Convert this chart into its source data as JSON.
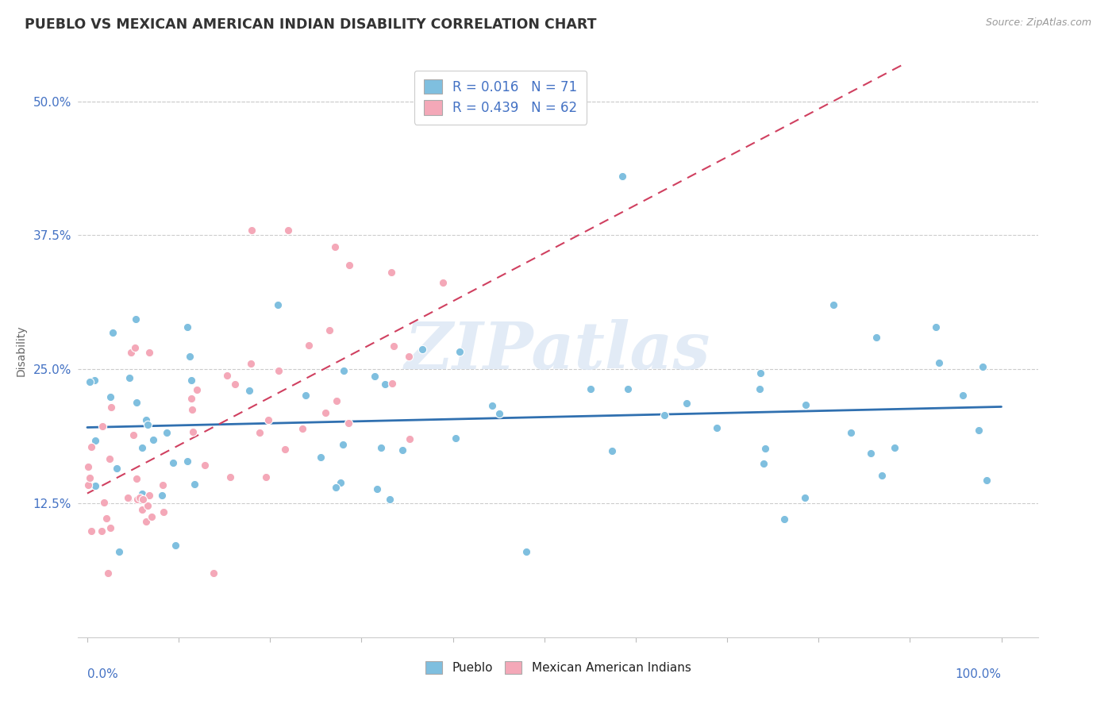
{
  "title": "PUEBLO VS MEXICAN AMERICAN INDIAN DISABILITY CORRELATION CHART",
  "source_text": "Source: ZipAtlas.com",
  "ylabel": "Disability",
  "ytick_vals": [
    0.125,
    0.25,
    0.375,
    0.5
  ],
  "legend_r1": "R = 0.016",
  "legend_n1": "N = 71",
  "legend_r2": "R = 0.439",
  "legend_n2": "N = 62",
  "blue_color": "#7fbfdf",
  "pink_color": "#f4a8b8",
  "trendline_blue": "#3070b0",
  "trendline_pink": "#d04060",
  "background_color": "#ffffff",
  "watermark_color": "#dde8f5",
  "R_blue": 0.016,
  "R_pink": 0.439,
  "N_blue": 71,
  "N_pink": 62
}
